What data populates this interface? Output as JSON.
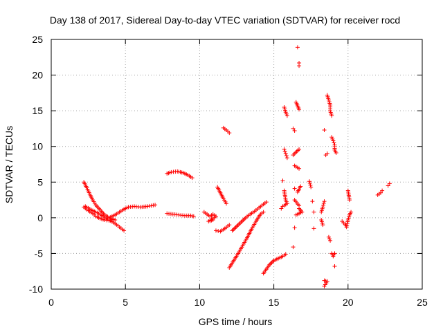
{
  "chart_data": {
    "type": "scatter",
    "title": "Day 138 of 2017, Sidereal Day-to-day VTEC variation (SDTVAR) for receiver rocd",
    "xlabel": "GPS time / hours",
    "ylabel": "SDTVAR / TECUs",
    "xlim": [
      0,
      25
    ],
    "ylim": [
      -10,
      25
    ],
    "xticks": [
      "0",
      "5",
      "10",
      "15",
      "20",
      "25"
    ],
    "yticks": [
      "-10",
      "-5",
      "0",
      "5",
      "10",
      "15",
      "20",
      "25"
    ],
    "grid": true,
    "marker": "+",
    "color": "#ff0000",
    "segments": [
      [
        [
          2.2,
          5.0
        ],
        [
          2.4,
          4.2
        ],
        [
          2.6,
          3.3
        ],
        [
          2.8,
          2.5
        ],
        [
          3.0,
          1.8
        ],
        [
          3.3,
          1.1
        ],
        [
          3.6,
          0.4
        ],
        [
          4.0,
          -0.1
        ],
        [
          4.3,
          -0.3
        ]
      ],
      [
        [
          2.2,
          1.5
        ],
        [
          2.5,
          1.0
        ],
        [
          2.8,
          0.6
        ],
        [
          3.0,
          0.2
        ],
        [
          3.3,
          -0.1
        ],
        [
          3.6,
          -0.3
        ],
        [
          3.9,
          -0.4
        ],
        [
          4.2,
          -0.2
        ]
      ],
      [
        [
          2.3,
          1.6
        ],
        [
          2.7,
          1.1
        ],
        [
          3.1,
          0.7
        ],
        [
          3.5,
          0.2
        ],
        [
          3.9,
          -0.3
        ],
        [
          4.3,
          -0.8
        ],
        [
          4.6,
          -1.3
        ],
        [
          4.9,
          -1.8
        ]
      ],
      [
        [
          4.0,
          0.1
        ],
        [
          4.3,
          0.4
        ],
        [
          4.6,
          0.8
        ],
        [
          4.9,
          1.2
        ],
        [
          5.2,
          1.5
        ],
        [
          5.6,
          1.6
        ],
        [
          6.0,
          1.5
        ],
        [
          6.5,
          1.6
        ],
        [
          7.0,
          1.8
        ]
      ],
      [
        [
          7.8,
          6.2
        ],
        [
          8.1,
          6.4
        ],
        [
          8.5,
          6.5
        ],
        [
          8.9,
          6.3
        ],
        [
          9.2,
          6.0
        ],
        [
          9.5,
          5.6
        ]
      ],
      [
        [
          7.8,
          0.6
        ],
        [
          8.2,
          0.5
        ],
        [
          8.6,
          0.4
        ],
        [
          9.0,
          0.3
        ],
        [
          9.4,
          0.3
        ],
        [
          9.6,
          0.2
        ]
      ],
      [
        [
          10.3,
          0.8
        ],
        [
          10.5,
          0.5
        ],
        [
          10.7,
          0.2
        ],
        [
          10.9,
          0.5
        ],
        [
          11.1,
          0.2
        ],
        [
          10.6,
          -0.5
        ],
        [
          10.9,
          -0.3
        ]
      ],
      [
        [
          11.2,
          4.3
        ],
        [
          11.4,
          3.5
        ],
        [
          11.6,
          2.7
        ],
        [
          11.8,
          2.0
        ]
      ],
      [
        [
          11.6,
          12.6
        ],
        [
          11.8,
          12.3
        ],
        [
          12.0,
          11.9
        ]
      ],
      [
        [
          11.1,
          -1.8
        ],
        [
          11.4,
          -1.9
        ],
        [
          11.7,
          -1.5
        ],
        [
          12.0,
          -1.0
        ]
      ],
      [
        [
          12.0,
          -7.0
        ],
        [
          12.3,
          -6.0
        ],
        [
          12.6,
          -5.0
        ],
        [
          12.9,
          -3.9
        ],
        [
          13.2,
          -2.8
        ],
        [
          13.5,
          -1.6
        ],
        [
          13.8,
          -0.5
        ],
        [
          14.1,
          0.5
        ],
        [
          14.3,
          0.8
        ]
      ],
      [
        [
          12.2,
          -1.8
        ],
        [
          12.5,
          -1.2
        ],
        [
          12.8,
          -0.6
        ],
        [
          13.1,
          0.0
        ],
        [
          13.4,
          0.5
        ],
        [
          13.7,
          0.9
        ],
        [
          14.0,
          1.4
        ],
        [
          14.3,
          1.9
        ],
        [
          14.5,
          2.2
        ]
      ],
      [
        [
          14.3,
          -7.8
        ],
        [
          14.5,
          -7.2
        ],
        [
          14.7,
          -6.6
        ],
        [
          15.0,
          -6.0
        ],
        [
          15.3,
          -5.7
        ],
        [
          15.6,
          -5.4
        ],
        [
          15.8,
          -5.1
        ]
      ],
      [
        [
          15.7,
          15.5
        ],
        [
          15.8,
          14.8
        ],
        [
          15.9,
          14.3
        ]
      ],
      [
        [
          15.7,
          9.6
        ],
        [
          15.8,
          9.0
        ],
        [
          15.9,
          8.4
        ]
      ],
      [
        [
          15.6,
          5.2
        ],
        [
          15.7,
          3.8
        ],
        [
          15.8,
          2.5
        ],
        [
          15.9,
          2.0
        ],
        [
          15.6,
          1.6
        ],
        [
          15.5,
          1.3
        ]
      ],
      [
        [
          16.3,
          12.5
        ],
        [
          16.4,
          12.2
        ]
      ],
      [
        [
          16.5,
          16.2
        ],
        [
          16.7,
          15.2
        ]
      ],
      [
        [
          16.6,
          23.9
        ],
        [
          16.7,
          21.7
        ],
        [
          16.7,
          21.3
        ]
      ],
      [
        [
          16.3,
          8.8
        ],
        [
          16.7,
          9.6
        ],
        [
          16.7,
          6.9
        ],
        [
          16.4,
          7.3
        ]
      ],
      [
        [
          16.4,
          4.1
        ],
        [
          16.4,
          2.5
        ],
        [
          16.7,
          1.7
        ],
        [
          16.8,
          4.4
        ],
        [
          16.6,
          3.6
        ],
        [
          16.4,
          -1.4
        ],
        [
          16.3,
          -4.1
        ]
      ],
      [
        [
          16.7,
          1.3
        ],
        [
          16.9,
          0.8
        ],
        [
          16.5,
          0.4
        ]
      ],
      [
        [
          17.4,
          5.1
        ],
        [
          17.5,
          4.3
        ],
        [
          17.6,
          2.3
        ],
        [
          17.7,
          0.8
        ],
        [
          17.7,
          -1.5
        ]
      ],
      [
        [
          18.4,
          12.3
        ],
        [
          18.5,
          8.8
        ],
        [
          18.6,
          9.0
        ]
      ],
      [
        [
          18.6,
          17.2
        ],
        [
          18.7,
          16.5
        ],
        [
          18.8,
          15.8
        ],
        [
          18.8,
          15.0
        ],
        [
          18.9,
          14.3
        ]
      ],
      [
        [
          18.9,
          11.3
        ],
        [
          19.0,
          10.8
        ],
        [
          19.1,
          10.2
        ],
        [
          19.1,
          9.5
        ],
        [
          19.2,
          9.1
        ]
      ],
      [
        [
          18.2,
          0.8
        ],
        [
          18.3,
          1.5
        ],
        [
          18.4,
          2.3
        ],
        [
          18.2,
          -0.3
        ],
        [
          18.3,
          -1.0
        ]
      ],
      [
        [
          18.7,
          -2.7
        ],
        [
          18.8,
          -3.2
        ],
        [
          18.9,
          -5.0
        ],
        [
          19.0,
          -5.4
        ],
        [
          19.1,
          -5.0
        ],
        [
          19.1,
          -6.8
        ]
      ],
      [
        [
          18.4,
          -8.8
        ],
        [
          18.6,
          -8.9
        ],
        [
          18.4,
          -9.6
        ]
      ],
      [
        [
          19.6,
          -0.5
        ],
        [
          19.8,
          -0.9
        ],
        [
          19.9,
          -1.3
        ],
        [
          20.0,
          -0.3
        ],
        [
          20.1,
          0.4
        ],
        [
          20.2,
          0.8
        ]
      ],
      [
        [
          20.0,
          3.8
        ],
        [
          20.1,
          2.5
        ]
      ],
      [
        [
          22.0,
          3.2
        ],
        [
          22.2,
          3.5
        ],
        [
          22.3,
          3.8
        ]
      ],
      [
        [
          22.7,
          4.5
        ],
        [
          22.8,
          4.8
        ]
      ]
    ]
  }
}
